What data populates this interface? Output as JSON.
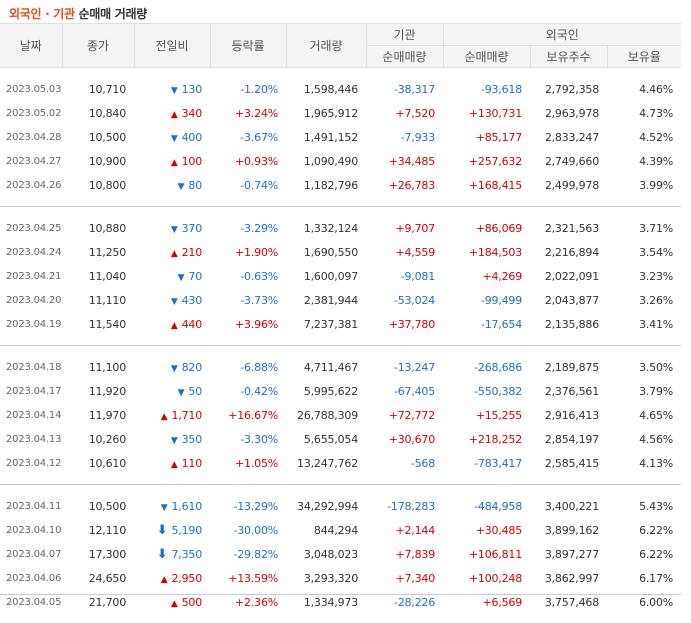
{
  "title": {
    "highlight": "외국인 · 기관",
    "rest": "순매매 거래량"
  },
  "headers": {
    "date": "날짜",
    "close": "종가",
    "change": "전일비",
    "rate": "등락률",
    "volume": "거래량",
    "inst_group": "기관",
    "inst_net": "순매매량",
    "foreign_group": "외국인",
    "foreign_net": "순매매량",
    "foreign_hold": "보유주수",
    "foreign_ratio": "보유율"
  },
  "colors": {
    "up": "#d70000",
    "down": "#1c6ecf",
    "accent": "#e64e0f"
  },
  "groups": [
    {
      "rows": [
        {
          "date": "2023.05.03",
          "close": "10,710",
          "dir": "down",
          "change": "130",
          "rate": "-1.20%",
          "volume": "1,598,446",
          "inst": "-38,317",
          "foreign": "-93,618",
          "hold": "2,792,358",
          "ratio": "4.46%"
        },
        {
          "date": "2023.05.02",
          "close": "10,840",
          "dir": "up",
          "change": "340",
          "rate": "+3.24%",
          "volume": "1,965,912",
          "inst": "+7,520",
          "foreign": "+130,731",
          "hold": "2,963,978",
          "ratio": "4.73%"
        },
        {
          "date": "2023.04.28",
          "close": "10,500",
          "dir": "down",
          "change": "400",
          "rate": "-3.67%",
          "volume": "1,491,152",
          "inst": "-7,933",
          "foreign": "+85,177",
          "hold": "2,833,247",
          "ratio": "4.52%"
        },
        {
          "date": "2023.04.27",
          "close": "10,900",
          "dir": "up",
          "change": "100",
          "rate": "+0.93%",
          "volume": "1,090,490",
          "inst": "+34,485",
          "foreign": "+257,632",
          "hold": "2,749,660",
          "ratio": "4.39%"
        },
        {
          "date": "2023.04.26",
          "close": "10,800",
          "dir": "down",
          "change": "80",
          "rate": "-0.74%",
          "volume": "1,182,796",
          "inst": "+26,783",
          "foreign": "+168,415",
          "hold": "2,499,978",
          "ratio": "3.99%"
        }
      ]
    },
    {
      "rows": [
        {
          "date": "2023.04.25",
          "close": "10,880",
          "dir": "down",
          "change": "370",
          "rate": "-3.29%",
          "volume": "1,332,124",
          "inst": "+9,707",
          "foreign": "+86,069",
          "hold": "2,321,563",
          "ratio": "3.71%"
        },
        {
          "date": "2023.04.24",
          "close": "11,250",
          "dir": "up",
          "change": "210",
          "rate": "+1.90%",
          "volume": "1,690,550",
          "inst": "+4,559",
          "foreign": "+184,503",
          "hold": "2,216,894",
          "ratio": "3.54%"
        },
        {
          "date": "2023.04.21",
          "close": "11,040",
          "dir": "down",
          "change": "70",
          "rate": "-0.63%",
          "volume": "1,600,097",
          "inst": "-9,081",
          "foreign": "+4,269",
          "hold": "2,022,091",
          "ratio": "3.23%"
        },
        {
          "date": "2023.04.20",
          "close": "11,110",
          "dir": "down",
          "change": "430",
          "rate": "-3.73%",
          "volume": "2,381,944",
          "inst": "-53,024",
          "foreign": "-99,499",
          "hold": "2,043,877",
          "ratio": "3.26%"
        },
        {
          "date": "2023.04.19",
          "close": "11,540",
          "dir": "up",
          "change": "440",
          "rate": "+3.96%",
          "volume": "7,237,381",
          "inst": "+37,780",
          "foreign": "-17,654",
          "hold": "2,135,886",
          "ratio": "3.41%"
        }
      ]
    },
    {
      "rows": [
        {
          "date": "2023.04.18",
          "close": "11,100",
          "dir": "down",
          "change": "820",
          "rate": "-6.88%",
          "volume": "4,711,467",
          "inst": "-13,247",
          "foreign": "-268,686",
          "hold": "2,189,875",
          "ratio": "3.50%"
        },
        {
          "date": "2023.04.17",
          "close": "11,920",
          "dir": "down",
          "change": "50",
          "rate": "-0.42%",
          "volume": "5,995,622",
          "inst": "-67,405",
          "foreign": "-550,382",
          "hold": "2,376,561",
          "ratio": "3.79%"
        },
        {
          "date": "2023.04.14",
          "close": "11,970",
          "dir": "up",
          "change": "1,710",
          "rate": "+16.67%",
          "volume": "26,788,309",
          "inst": "+72,772",
          "foreign": "+15,255",
          "hold": "2,916,413",
          "ratio": "4.65%"
        },
        {
          "date": "2023.04.13",
          "close": "10,260",
          "dir": "down",
          "change": "350",
          "rate": "-3.30%",
          "volume": "5,655,054",
          "inst": "+30,670",
          "foreign": "+218,252",
          "hold": "2,854,197",
          "ratio": "4.56%"
        },
        {
          "date": "2023.04.12",
          "close": "10,610",
          "dir": "up",
          "change": "110",
          "rate": "+1.05%",
          "volume": "13,247,762",
          "inst": "-568",
          "foreign": "-783,417",
          "hold": "2,585,415",
          "ratio": "4.13%"
        }
      ]
    },
    {
      "rows": [
        {
          "date": "2023.04.11",
          "close": "10,500",
          "dir": "down",
          "change": "1,610",
          "rate": "-13.29%",
          "volume": "34,292,994",
          "inst": "-178,283",
          "foreign": "-484,958",
          "hold": "3,400,221",
          "ratio": "5.43%"
        },
        {
          "date": "2023.04.10",
          "close": "12,110",
          "dir": "limitdown",
          "change": "5,190",
          "rate": "-30.00%",
          "volume": "844,294",
          "inst": "+2,144",
          "foreign": "+30,485",
          "hold": "3,899,162",
          "ratio": "6.22%"
        },
        {
          "date": "2023.04.07",
          "close": "17,300",
          "dir": "limitdown",
          "change": "7,350",
          "rate": "-29.82%",
          "volume": "3,048,023",
          "inst": "+7,839",
          "foreign": "+106,811",
          "hold": "3,897,277",
          "ratio": "6.22%"
        },
        {
          "date": "2023.04.06",
          "close": "24,650",
          "dir": "up",
          "change": "2,950",
          "rate": "+13.59%",
          "volume": "3,293,320",
          "inst": "+7,340",
          "foreign": "+100,248",
          "hold": "3,862,997",
          "ratio": "6.17%"
        },
        {
          "date": "2023.04.05",
          "close": "21,700",
          "dir": "up",
          "change": "500",
          "rate": "+2.36%",
          "volume": "1,334,973",
          "inst": "-28,226",
          "foreign": "+6,569",
          "hold": "3,757,468",
          "ratio": "6.00%"
        }
      ]
    }
  ]
}
